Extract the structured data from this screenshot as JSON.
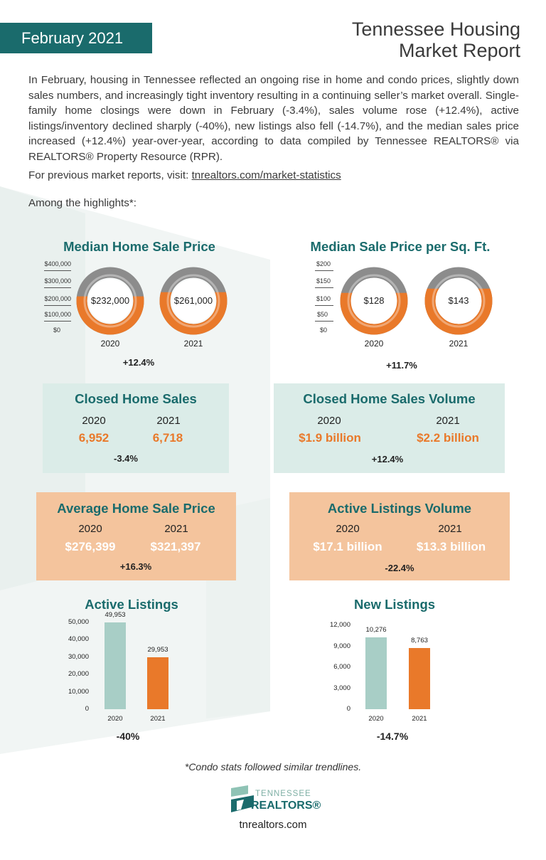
{
  "header": {
    "date": "February 2021",
    "title_line1": "Tennessee Housing",
    "title_line2": "Market Report"
  },
  "intro": "In February, housing in Tennessee reflected an ongoing rise in home and condo prices, slightly down sales numbers, and increasingly tight inventory resulting in a continuing seller’s market overall. Single-family home closings were down in February (-3.4%), sales volume rose (+12.4%), active listings/inventory declined sharply (-40%), new listings also fell (-14.7%), and the median sales price increased (+12.4%) year-over-year, according to data compiled by Tennessee REALTORS® via REALTORS® Property Resource (RPR).",
  "previous": {
    "text": "For previous market reports, visit: ",
    "link": "tnrealtors.com/market-statistics"
  },
  "highlights_label": "Among the highlights*:",
  "colors": {
    "teal": "#1a6b6c",
    "orange": "#e9792a",
    "gray": "#8c8c8c",
    "mint_box": "#dbece8",
    "peach_box": "#f4c49d",
    "mint_bar": "#a8cec6"
  },
  "median_price": {
    "title": "Median Home Sale Price",
    "axis": [
      "$400,000",
      "$300,000",
      "$200,000",
      "$100,000",
      "$0"
    ],
    "axis_max": 400000,
    "items": [
      {
        "year": "2020",
        "label": "$232,000",
        "value": 232000
      },
      {
        "year": "2021",
        "label": "$261,000",
        "value": 261000
      }
    ],
    "change": "+12.4%"
  },
  "price_sqft": {
    "title": "Median Sale Price per Sq. Ft.",
    "axis": [
      "$200",
      "$150",
      "$100",
      "$50",
      "$0"
    ],
    "axis_max": 200,
    "items": [
      {
        "year": "2020",
        "label": "$128",
        "value": 128
      },
      {
        "year": "2021",
        "label": "$143",
        "value": 143
      }
    ],
    "change": "+11.7%"
  },
  "closed_sales": {
    "title": "Closed Home Sales",
    "years": [
      "2020",
      "2021"
    ],
    "values": [
      "6,952",
      "6,718"
    ],
    "change": "-3.4%"
  },
  "closed_volume": {
    "title": "Closed Home Sales Volume",
    "years": [
      "2020",
      "2021"
    ],
    "values": [
      "$1.9 billion",
      "$2.2 billion"
    ],
    "change": "+12.4%"
  },
  "avg_price": {
    "title": "Average Home Sale Price",
    "years": [
      "2020",
      "2021"
    ],
    "values": [
      "$276,399",
      "$321,397"
    ],
    "change": "+16.3%"
  },
  "active_volume": {
    "title": "Active Listings Volume",
    "years": [
      "2020",
      "2021"
    ],
    "values": [
      "$17.1 billion",
      "$13.3 billion"
    ],
    "change": "-22.4%"
  },
  "chart_data": [
    {
      "type": "bar",
      "title": "Active Listings",
      "categories": [
        "2020",
        "2021"
      ],
      "values": [
        49953,
        29953
      ],
      "value_labels": [
        "49,953",
        "29,953"
      ],
      "ticks": [
        "50,000",
        "40,000",
        "30,000",
        "20,000",
        "10,000",
        "0"
      ],
      "ylim": [
        0,
        50000
      ],
      "change": "-40%"
    },
    {
      "type": "bar",
      "title": "New Listings",
      "categories": [
        "2020",
        "2021"
      ],
      "values": [
        10276,
        8763
      ],
      "value_labels": [
        "10,276",
        "8,763"
      ],
      "ticks": [
        "12,000",
        "9,000",
        "6,000",
        "3,000",
        "0"
      ],
      "ylim": [
        0,
        12000
      ],
      "change": "-14.7%"
    }
  ],
  "footnote": "*Condo stats followed similar trendlines.",
  "logo": {
    "line1": "TENNESSEE",
    "line2": "REALTORS®"
  },
  "website": "tnrealtors.com"
}
